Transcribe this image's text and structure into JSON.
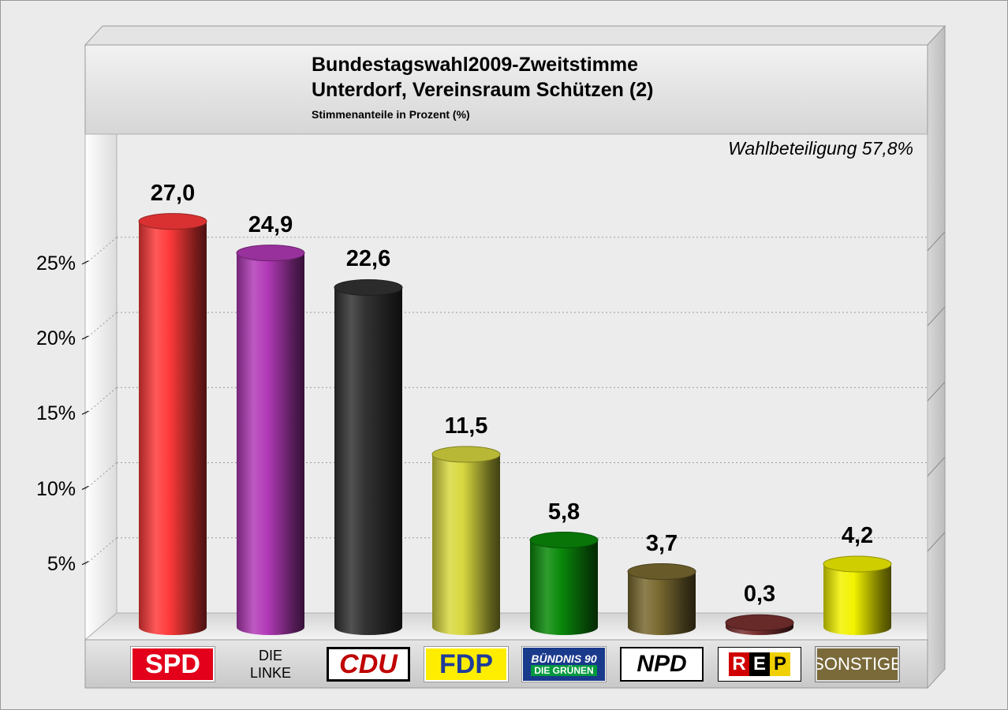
{
  "chart_data": {
    "type": "bar",
    "title": "Bundestagswahl2009-Zweitstimme",
    "subtitle": "Unterdorf, Vereinsraum Schützen (2)",
    "caption": "Stimmenanteile in Prozent (%)",
    "annotation": "Wahlbeteiligung 57,8%",
    "ylim": [
      0,
      30
    ],
    "yticks": [
      5,
      10,
      15,
      20,
      25
    ],
    "ytick_labels": [
      "5%",
      "10%",
      "15%",
      "20%",
      "25%"
    ],
    "grid": true,
    "categories": [
      "SPD",
      "DIE LINKE",
      "CDU",
      "FDP",
      "BÜNDNIS 90 DIE GRÜNEN",
      "NPD",
      "REP",
      "SONSTIGE"
    ],
    "values": [
      27.0,
      24.9,
      22.6,
      11.5,
      5.8,
      3.7,
      0.3,
      4.2
    ],
    "value_labels": [
      "27,0",
      "24,9",
      "22,6",
      "11,5",
      "5,8",
      "3,7",
      "0,3",
      "4,2"
    ],
    "colors": [
      "#ff3a3a",
      "#b33ab8",
      "#333333",
      "#d8d840",
      "#0a8a0a",
      "#7a6a30",
      "#7a3030",
      "#f2f200"
    ]
  },
  "logos": {
    "spd": "SPD",
    "linke_line1": "DIE",
    "linke_line2": "LINKE",
    "cdu": "CDU",
    "fdp": "FDP",
    "gruene_line1": "BÜNDNIS 90",
    "gruene_line2": "DIE GRÜNEN",
    "npd": "NPD",
    "rep_letters": [
      "R",
      "E",
      "P"
    ],
    "sonstige": "SONSTIGE"
  }
}
